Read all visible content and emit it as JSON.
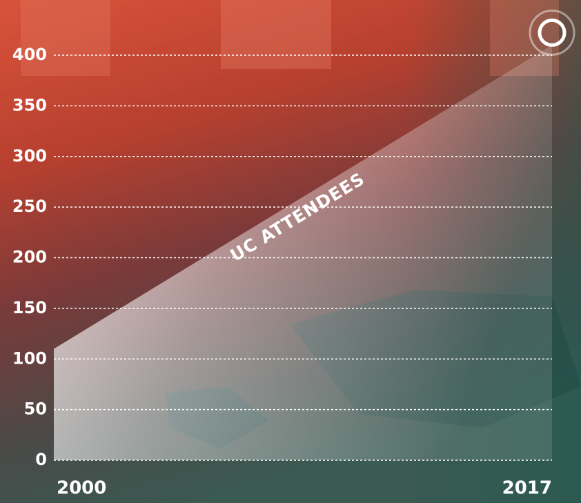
{
  "chart_data": {
    "type": "area",
    "x": [
      2000,
      2017
    ],
    "values": [
      110,
      410
    ],
    "xlim": [
      2000,
      2017
    ],
    "xticks": [
      2000,
      2017
    ],
    "ylim": [
      0,
      400
    ],
    "yticks": [
      0,
      50,
      100,
      150,
      200,
      250,
      300,
      350,
      400
    ],
    "grid": true,
    "annotation": "UC ATTENDEES",
    "color": "#ffffff"
  }
}
